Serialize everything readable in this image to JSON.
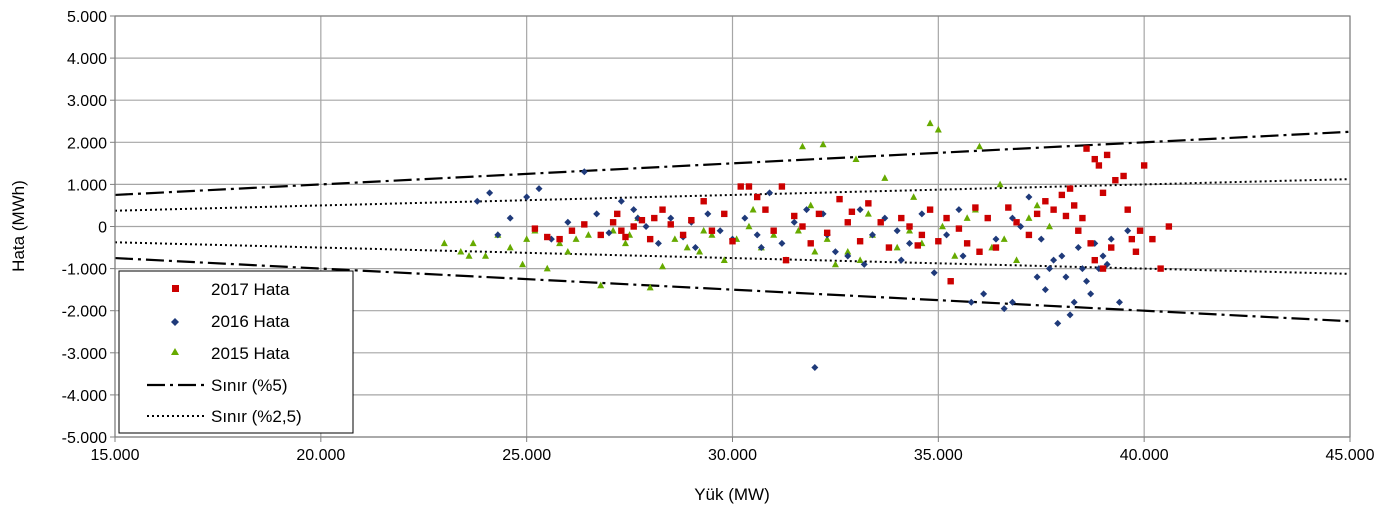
{
  "chart_data": {
    "type": "scatter",
    "title": "",
    "xlabel": "Yük (MW)",
    "ylabel": "Hata (MWh)",
    "xlim": [
      15000,
      45000
    ],
    "ylim": [
      -5000,
      5000
    ],
    "x_ticks": [
      15000,
      20000,
      25000,
      30000,
      35000,
      40000,
      45000
    ],
    "x_tick_labels": [
      "15.000",
      "20.000",
      "25.000",
      "30.000",
      "35.000",
      "40.000",
      "45.000"
    ],
    "y_ticks": [
      5000,
      4000,
      3000,
      2000,
      1000,
      0,
      -1000,
      -2000,
      -3000,
      -4000,
      -5000
    ],
    "y_tick_labels": [
      "5.000",
      "4.000",
      "3.000",
      "2.000",
      "1.000",
      "0",
      "-1.000",
      "-2.000",
      "-3.000",
      "-4.000",
      "-5.000"
    ],
    "grid": true,
    "legend_position": "bottom-left",
    "series": [
      {
        "name": "2017 Hata",
        "color": "#cc0000",
        "marker": "square",
        "points": [
          [
            25200,
            -50
          ],
          [
            25500,
            -250
          ],
          [
            25800,
            -300
          ],
          [
            26100,
            -100
          ],
          [
            26400,
            50
          ],
          [
            26800,
            -200
          ],
          [
            27100,
            100
          ],
          [
            27200,
            300
          ],
          [
            27300,
            -100
          ],
          [
            27400,
            -250
          ],
          [
            27600,
            0
          ],
          [
            27800,
            150
          ],
          [
            28000,
            -300
          ],
          [
            28100,
            200
          ],
          [
            28300,
            400
          ],
          [
            28500,
            50
          ],
          [
            28800,
            -200
          ],
          [
            29000,
            150
          ],
          [
            29300,
            600
          ],
          [
            29500,
            -100
          ],
          [
            29800,
            300
          ],
          [
            30000,
            -350
          ],
          [
            30200,
            950
          ],
          [
            30400,
            950
          ],
          [
            30600,
            700
          ],
          [
            30800,
            400
          ],
          [
            31000,
            -100
          ],
          [
            31200,
            950
          ],
          [
            31300,
            -800
          ],
          [
            31500,
            250
          ],
          [
            31700,
            0
          ],
          [
            31900,
            -400
          ],
          [
            32100,
            300
          ],
          [
            32300,
            -150
          ],
          [
            32600,
            650
          ],
          [
            32800,
            100
          ],
          [
            33100,
            -350
          ],
          [
            33300,
            550
          ],
          [
            33600,
            100
          ],
          [
            33800,
            -500
          ],
          [
            34100,
            200
          ],
          [
            34300,
            0
          ],
          [
            34600,
            -200
          ],
          [
            34800,
            400
          ],
          [
            35000,
            -350
          ],
          [
            35200,
            200
          ],
          [
            35300,
            -1300
          ],
          [
            35500,
            -50
          ],
          [
            35700,
            -400
          ],
          [
            35900,
            450
          ],
          [
            36200,
            200
          ],
          [
            36400,
            -500
          ],
          [
            36700,
            450
          ],
          [
            36900,
            100
          ],
          [
            37200,
            -200
          ],
          [
            37400,
            300
          ],
          [
            37600,
            600
          ],
          [
            37800,
            400
          ],
          [
            38000,
            750
          ],
          [
            38100,
            250
          ],
          [
            38200,
            900
          ],
          [
            38400,
            -100
          ],
          [
            38500,
            200
          ],
          [
            38600,
            1850
          ],
          [
            38700,
            -400
          ],
          [
            38800,
            1600
          ],
          [
            38900,
            1450
          ],
          [
            39000,
            800
          ],
          [
            39100,
            1700
          ],
          [
            39200,
            -500
          ],
          [
            39300,
            1100
          ],
          [
            39500,
            1200
          ],
          [
            39700,
            -300
          ],
          [
            39900,
            -100
          ],
          [
            40000,
            1450
          ],
          [
            40200,
            -300
          ],
          [
            40400,
            -1000
          ],
          [
            40600,
            0
          ],
          [
            38300,
            500
          ],
          [
            38800,
            -800
          ],
          [
            39000,
            -1000
          ],
          [
            39600,
            400
          ],
          [
            39800,
            -600
          ],
          [
            36000,
            -600
          ],
          [
            34500,
            -450
          ],
          [
            32900,
            350
          ]
        ]
      },
      {
        "name": "2016 Hata",
        "color": "#1f3a7a",
        "marker": "diamond",
        "points": [
          [
            23800,
            600
          ],
          [
            24100,
            800
          ],
          [
            24300,
            -200
          ],
          [
            24600,
            200
          ],
          [
            25000,
            700
          ],
          [
            25300,
            900
          ],
          [
            25600,
            -300
          ],
          [
            26000,
            100
          ],
          [
            26400,
            1300
          ],
          [
            26700,
            300
          ],
          [
            27000,
            -150
          ],
          [
            27300,
            600
          ],
          [
            27600,
            400
          ],
          [
            27900,
            0
          ],
          [
            28200,
            -400
          ],
          [
            28500,
            200
          ],
          [
            28800,
            -250
          ],
          [
            29100,
            -500
          ],
          [
            29400,
            300
          ],
          [
            29700,
            -100
          ],
          [
            30000,
            -300
          ],
          [
            30300,
            200
          ],
          [
            30600,
            -200
          ],
          [
            30900,
            800
          ],
          [
            31200,
            -400
          ],
          [
            31500,
            100
          ],
          [
            31800,
            400
          ],
          [
            32000,
            -3350
          ],
          [
            32200,
            300
          ],
          [
            32500,
            -600
          ],
          [
            32800,
            -700
          ],
          [
            33100,
            400
          ],
          [
            33400,
            -200
          ],
          [
            33700,
            200
          ],
          [
            34000,
            -100
          ],
          [
            34300,
            -400
          ],
          [
            34600,
            300
          ],
          [
            34900,
            -1100
          ],
          [
            35200,
            -200
          ],
          [
            35500,
            400
          ],
          [
            35800,
            -1800
          ],
          [
            36100,
            -1600
          ],
          [
            36400,
            -300
          ],
          [
            36600,
            -1950
          ],
          [
            36800,
            -1800
          ],
          [
            37000,
            0
          ],
          [
            37200,
            700
          ],
          [
            37400,
            -1200
          ],
          [
            37600,
            -1500
          ],
          [
            37700,
            -1000
          ],
          [
            37800,
            -800
          ],
          [
            37900,
            -2300
          ],
          [
            38000,
            -700
          ],
          [
            38100,
            -1200
          ],
          [
            38200,
            -2100
          ],
          [
            38300,
            -1800
          ],
          [
            38400,
            -500
          ],
          [
            38500,
            -1000
          ],
          [
            38600,
            -1300
          ],
          [
            38700,
            -1600
          ],
          [
            38800,
            -400
          ],
          [
            38900,
            -1000
          ],
          [
            39000,
            -700
          ],
          [
            39100,
            -900
          ],
          [
            39200,
            -300
          ],
          [
            39400,
            -1800
          ],
          [
            39600,
            -100
          ],
          [
            37500,
            -300
          ],
          [
            36800,
            200
          ],
          [
            35600,
            -700
          ],
          [
            34100,
            -800
          ],
          [
            33200,
            -900
          ],
          [
            32300,
            -200
          ],
          [
            30700,
            -500
          ],
          [
            29000,
            100
          ],
          [
            27700,
            200
          ]
        ]
      },
      {
        "name": "2015 Hata",
        "color": "#66aa00",
        "marker": "triangle",
        "points": [
          [
            23000,
            -400
          ],
          [
            23400,
            -600
          ],
          [
            23700,
            -400
          ],
          [
            24000,
            -700
          ],
          [
            24300,
            -200
          ],
          [
            24600,
            -500
          ],
          [
            25000,
            -300
          ],
          [
            25200,
            -100
          ],
          [
            25500,
            -1000
          ],
          [
            25800,
            -400
          ],
          [
            26200,
            -300
          ],
          [
            26500,
            -200
          ],
          [
            26800,
            -1400
          ],
          [
            27100,
            -100
          ],
          [
            27400,
            -400
          ],
          [
            27700,
            200
          ],
          [
            28000,
            -1450
          ],
          [
            28300,
            -950
          ],
          [
            28600,
            -300
          ],
          [
            28900,
            -500
          ],
          [
            29200,
            -600
          ],
          [
            29500,
            -200
          ],
          [
            29800,
            -800
          ],
          [
            30100,
            -300
          ],
          [
            30400,
            0
          ],
          [
            30700,
            -500
          ],
          [
            31000,
            -200
          ],
          [
            31300,
            -800
          ],
          [
            31600,
            -100
          ],
          [
            31700,
            1900
          ],
          [
            32000,
            -600
          ],
          [
            32200,
            1950
          ],
          [
            32300,
            -300
          ],
          [
            32500,
            -900
          ],
          [
            32800,
            -600
          ],
          [
            33000,
            1600
          ],
          [
            33100,
            -800
          ],
          [
            33400,
            -200
          ],
          [
            33700,
            1150
          ],
          [
            34000,
            -500
          ],
          [
            34300,
            -100
          ],
          [
            34600,
            -400
          ],
          [
            34800,
            2450
          ],
          [
            35000,
            2300
          ],
          [
            35100,
            0
          ],
          [
            35400,
            -700
          ],
          [
            35700,
            200
          ],
          [
            36000,
            1900
          ],
          [
            36300,
            -500
          ],
          [
            36600,
            -300
          ],
          [
            36900,
            -800
          ],
          [
            37200,
            200
          ],
          [
            37400,
            500
          ],
          [
            37700,
            0
          ],
          [
            35900,
            400
          ],
          [
            36500,
            1000
          ],
          [
            34400,
            700
          ],
          [
            33300,
            300
          ],
          [
            31900,
            500
          ],
          [
            30500,
            400
          ],
          [
            29300,
            -100
          ],
          [
            27500,
            -200
          ],
          [
            26000,
            -600
          ],
          [
            24900,
            -900
          ],
          [
            23600,
            -700
          ]
        ]
      },
      {
        "name": "Sınır (%5)",
        "type": "line",
        "style": "dash-dot",
        "lines": [
          [
            [
              15000,
              750
            ],
            [
              45000,
              2250
            ]
          ],
          [
            [
              15000,
              -750
            ],
            [
              45000,
              -2250
            ]
          ]
        ]
      },
      {
        "name": "Sınır (%2,5)",
        "type": "line",
        "style": "dotted",
        "lines": [
          [
            [
              15000,
              375
            ],
            [
              45000,
              1125
            ]
          ],
          [
            [
              15000,
              -375
            ],
            [
              45000,
              -1125
            ]
          ]
        ]
      }
    ]
  }
}
